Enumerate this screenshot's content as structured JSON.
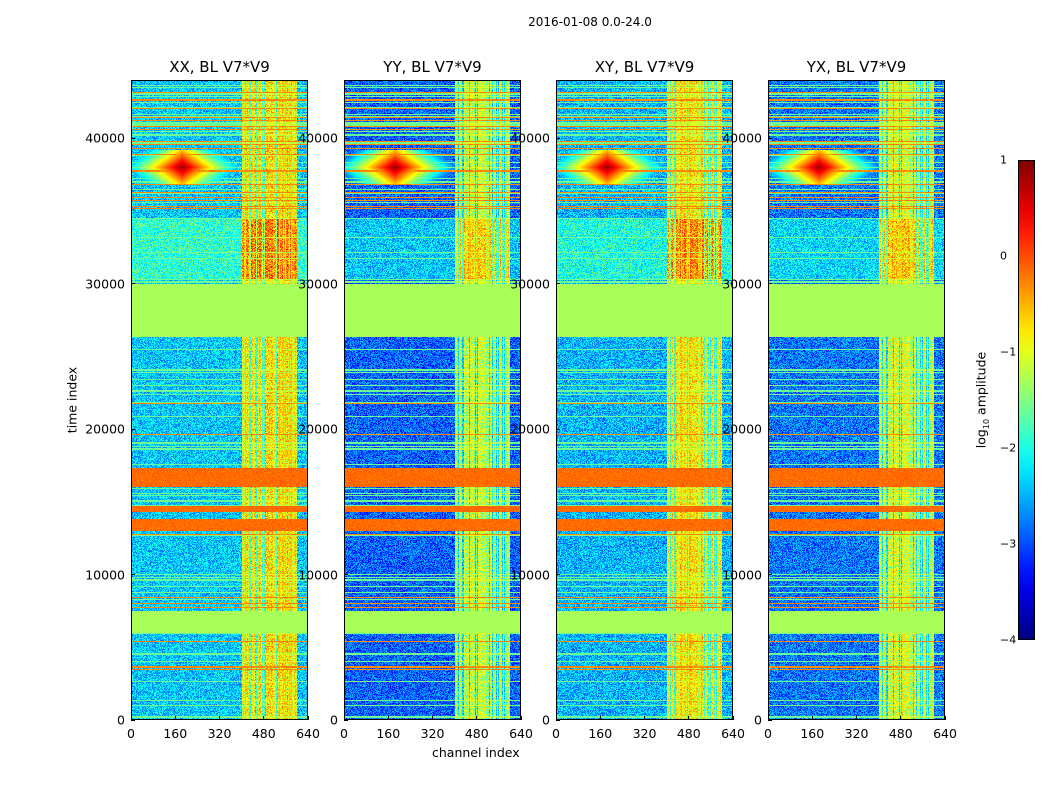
{
  "suptitle": "2016-01-08 0.0-24.0",
  "xlabel": "channel index",
  "ylabel": "time index",
  "colorbar": {
    "label_prefix": "log",
    "label_sub": "10",
    "label_suffix": " amplitude",
    "ticks": [
      "1",
      "0",
      "−1",
      "−2",
      "−3",
      "−4"
    ]
  },
  "chart_data": {
    "type": "heatmap",
    "colormap": "jet",
    "clim": [
      -4,
      1
    ],
    "xlim": [
      0,
      640
    ],
    "ylim": [
      0,
      44000
    ],
    "xticks": [
      "0",
      "160",
      "320",
      "480",
      "640"
    ],
    "yticks": [
      "0",
      "10000",
      "20000",
      "30000",
      "40000"
    ],
    "panels": [
      {
        "title": "XX, BL V7*V9",
        "background": -2.4
      },
      {
        "title": "YY, BL V7*V9",
        "background": -2.9
      },
      {
        "title": "XY, BL V7*V9",
        "background": -2.5
      },
      {
        "title": "YX, BL V7*V9",
        "background": -2.8
      }
    ],
    "flagged_time_ranges": [
      [
        26300,
        30000
      ],
      [
        6000,
        7500
      ]
    ],
    "high_amplitude_time_ranges": [
      [
        13000,
        13800
      ],
      [
        14300,
        14700
      ],
      [
        16000,
        17300
      ]
    ],
    "rfi_channel_range": [
      400,
      600
    ],
    "rfi_spike": {
      "time": 38000,
      "channel": 185
    }
  }
}
